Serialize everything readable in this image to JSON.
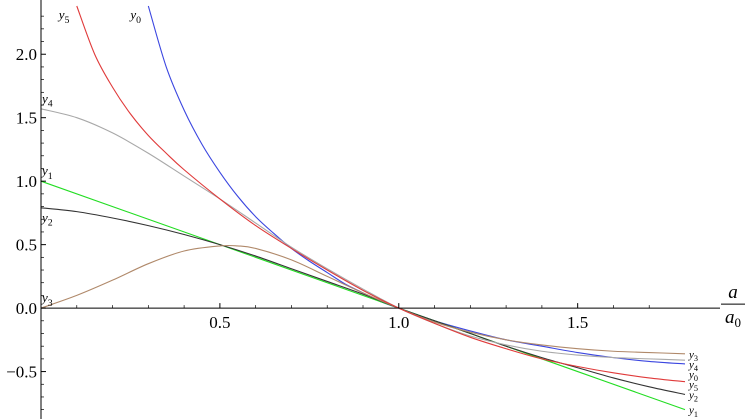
{
  "chart_data": {
    "type": "line",
    "title": "",
    "xlabel": "",
    "xlabel_numerator": "a",
    "xlabel_denominator": "a0",
    "ylabel": "",
    "xlim": [
      0,
      1.8
    ],
    "ylim": [
      -0.85,
      2.38
    ],
    "x_ticks": [
      0.5,
      1.0,
      1.5
    ],
    "x_tick_labels": [
      "0.5",
      "1.0",
      "1.5"
    ],
    "y_ticks": [
      -0.5,
      0.0,
      0.5,
      1.0,
      1.5,
      2.0
    ],
    "y_tick_labels": [
      "−0.5",
      "0.0",
      "0.5",
      "1.0",
      "1.5",
      "2.0"
    ],
    "grid": false,
    "legend": "inline-labels",
    "series": [
      {
        "name": "y0",
        "color": "#3b46e0",
        "x": [
          0.3,
          0.35,
          0.4,
          0.45,
          0.5,
          0.55,
          0.6,
          0.65,
          0.7,
          0.75,
          0.8,
          0.85,
          0.9,
          0.95,
          1.0,
          1.1,
          1.2,
          1.3,
          1.4,
          1.5,
          1.6,
          1.7,
          1.8
        ],
        "y": [
          2.38,
          1.9,
          1.56,
          1.29,
          1.07,
          0.88,
          0.72,
          0.59,
          0.47,
          0.37,
          0.28,
          0.19,
          0.12,
          0.05,
          0.0,
          -0.1,
          -0.18,
          -0.25,
          -0.3,
          -0.35,
          -0.39,
          -0.42,
          -0.44
        ]
      },
      {
        "name": "y1",
        "color": "#22dd22",
        "x": [
          0.0,
          0.5,
          1.0,
          1.5,
          1.8
        ],
        "y": [
          1.0,
          0.5,
          0.0,
          -0.5,
          -0.8
        ]
      },
      {
        "name": "y2",
        "color": "#333333",
        "x": [
          0.0,
          0.1,
          0.2,
          0.3,
          0.4,
          0.5,
          0.6,
          0.7,
          0.8,
          0.9,
          1.0,
          1.1,
          1.2,
          1.3,
          1.4,
          1.5,
          1.6,
          1.7,
          1.8
        ],
        "y": [
          0.79,
          0.76,
          0.71,
          0.65,
          0.58,
          0.5,
          0.41,
          0.31,
          0.21,
          0.11,
          0.0,
          -0.1,
          -0.2,
          -0.3,
          -0.39,
          -0.47,
          -0.55,
          -0.62,
          -0.68
        ]
      },
      {
        "name": "y3",
        "color": "#b0896a",
        "x": [
          0.0,
          0.1,
          0.2,
          0.3,
          0.4,
          0.5,
          0.55,
          0.6,
          0.7,
          0.8,
          0.9,
          1.0,
          1.1,
          1.2,
          1.3,
          1.4,
          1.5,
          1.6,
          1.7,
          1.8
        ],
        "y": [
          0.0,
          0.1,
          0.22,
          0.35,
          0.45,
          0.49,
          0.49,
          0.47,
          0.38,
          0.25,
          0.12,
          0.0,
          -0.11,
          -0.19,
          -0.25,
          -0.29,
          -0.32,
          -0.34,
          -0.35,
          -0.36
        ]
      },
      {
        "name": "y4",
        "color": "#a8a8a8",
        "x": [
          0.0,
          0.1,
          0.2,
          0.3,
          0.4,
          0.5,
          0.6,
          0.7,
          0.8,
          0.9,
          1.0,
          1.1,
          1.2,
          1.3,
          1.4,
          1.5,
          1.6,
          1.7,
          1.8
        ],
        "y": [
          1.57,
          1.5,
          1.38,
          1.22,
          1.04,
          0.86,
          0.67,
          0.48,
          0.31,
          0.15,
          0.0,
          -0.12,
          -0.22,
          -0.29,
          -0.34,
          -0.37,
          -0.39,
          -0.4,
          -0.41
        ]
      },
      {
        "name": "y5",
        "color": "#e03a3a",
        "x": [
          0.1,
          0.15,
          0.2,
          0.25,
          0.3,
          0.35,
          0.4,
          0.5,
          0.6,
          0.7,
          0.8,
          0.9,
          1.0,
          1.1,
          1.2,
          1.3,
          1.4,
          1.5,
          1.6,
          1.7,
          1.8
        ],
        "y": [
          2.38,
          2.0,
          1.74,
          1.53,
          1.36,
          1.22,
          1.09,
          0.86,
          0.65,
          0.47,
          0.3,
          0.14,
          0.0,
          -0.12,
          -0.23,
          -0.32,
          -0.4,
          -0.46,
          -0.51,
          -0.55,
          -0.58
        ]
      }
    ],
    "annotations": [
      {
        "series": "y0",
        "base": "y",
        "sub": "0",
        "at": "top"
      },
      {
        "series": "y5",
        "base": "y",
        "sub": "5",
        "at": "top"
      },
      {
        "series": "y4",
        "base": "y",
        "sub": "4",
        "at": "left"
      },
      {
        "series": "y1",
        "base": "y",
        "sub": "1",
        "at": "left"
      },
      {
        "series": "y2",
        "base": "y",
        "sub": "2",
        "at": "left"
      },
      {
        "series": "y3",
        "base": "y",
        "sub": "3",
        "at": "left"
      },
      {
        "series": "y3",
        "base": "y",
        "sub": "3",
        "at": "right"
      },
      {
        "series": "y4",
        "base": "y",
        "sub": "4",
        "at": "right"
      },
      {
        "series": "y0",
        "base": "y",
        "sub": "0",
        "at": "right"
      },
      {
        "series": "y5",
        "base": "y",
        "sub": "5",
        "at": "right"
      },
      {
        "series": "y2",
        "base": "y",
        "sub": "2",
        "at": "right"
      },
      {
        "series": "y1",
        "base": "y",
        "sub": "1",
        "at": "right"
      }
    ]
  }
}
